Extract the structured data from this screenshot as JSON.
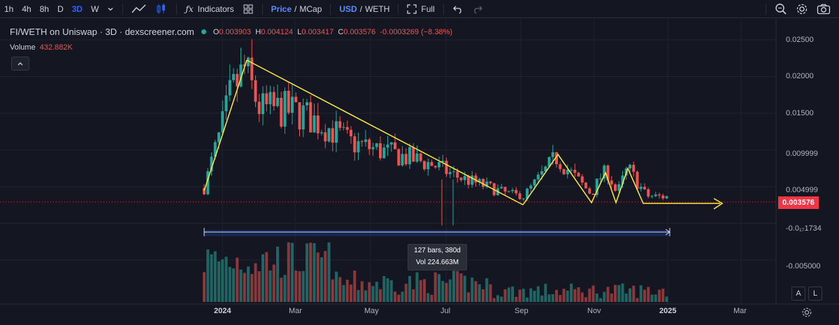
{
  "toolbar": {
    "intervals": [
      "1h",
      "4h",
      "8h",
      "D",
      "3D",
      "W"
    ],
    "active_interval": "3D",
    "indicators_label": "Indicators",
    "price_label": "Price",
    "slash": "/",
    "mcap_label": "MCap",
    "usd_label": "USD",
    "weth_label": "WETH",
    "full_label": "Full"
  },
  "legend": {
    "symbol": "FI/WETH on Uniswap · 3D · dexscreener.com",
    "o_label": "O",
    "o_value": "0.003903",
    "h_label": "H",
    "h_value": "0.004124",
    "l_label": "L",
    "l_value": "0.003417",
    "c_label": "C",
    "c_value": "0.003576",
    "change": "-0.0003269 (−8.38%)",
    "volume_label": "Volume",
    "volume_value": "432.882K"
  },
  "price_axis": {
    "labels": [
      "0.02500",
      "0.02000",
      "0.01500",
      "0.009999",
      "0.004999",
      "-0.0₁₇1734",
      "-0.005000"
    ],
    "current_price": "0.003576"
  },
  "time_axis": {
    "labels": [
      "2024",
      "Mar",
      "May",
      "Jul",
      "Sep",
      "Nov",
      "2025",
      "Mar"
    ]
  },
  "measure_tooltip": {
    "bars": "127 bars, 380d",
    "volume": "Vol 224.663M"
  },
  "corner_buttons": {
    "auto": "A",
    "log": "L"
  },
  "colors": {
    "up": "#26a69a",
    "down": "#ef5350",
    "drawing": "#ffeb3b",
    "measure": "#2962ff",
    "price_tag": "#f23645"
  },
  "chart_data": {
    "type": "candlestick",
    "y_range": [
      -0.008,
      0.027
    ],
    "date_range": [
      "2023-12-20",
      "2025-01-05"
    ],
    "candles_sample": [
      {
        "date": "2023-12-24",
        "o": 0.0045,
        "h": 0.0075,
        "l": 0.004,
        "c": 0.007
      },
      {
        "date": "2024-01-11",
        "o": 0.015,
        "h": 0.0225,
        "l": 0.014,
        "c": 0.0205
      },
      {
        "date": "2024-03-10",
        "o": 0.0165,
        "h": 0.0185,
        "l": 0.0125,
        "c": 0.0145
      },
      {
        "date": "2024-05-10",
        "o": 0.0115,
        "h": 0.013,
        "l": 0.009,
        "c": 0.0105
      },
      {
        "date": "2024-07-01",
        "o": 0.006,
        "h": 0.007,
        "l": -0.0005,
        "c": 0.0055
      },
      {
        "date": "2024-09-01",
        "o": 0.004,
        "h": 0.0045,
        "l": 0.003,
        "c": 0.0035
      },
      {
        "date": "2024-10-15",
        "o": 0.008,
        "h": 0.0098,
        "l": 0.007,
        "c": 0.009
      },
      {
        "date": "2024-12-25",
        "o": 0.0039,
        "h": 0.0041,
        "l": 0.0034,
        "c": 0.0036
      }
    ]
  }
}
